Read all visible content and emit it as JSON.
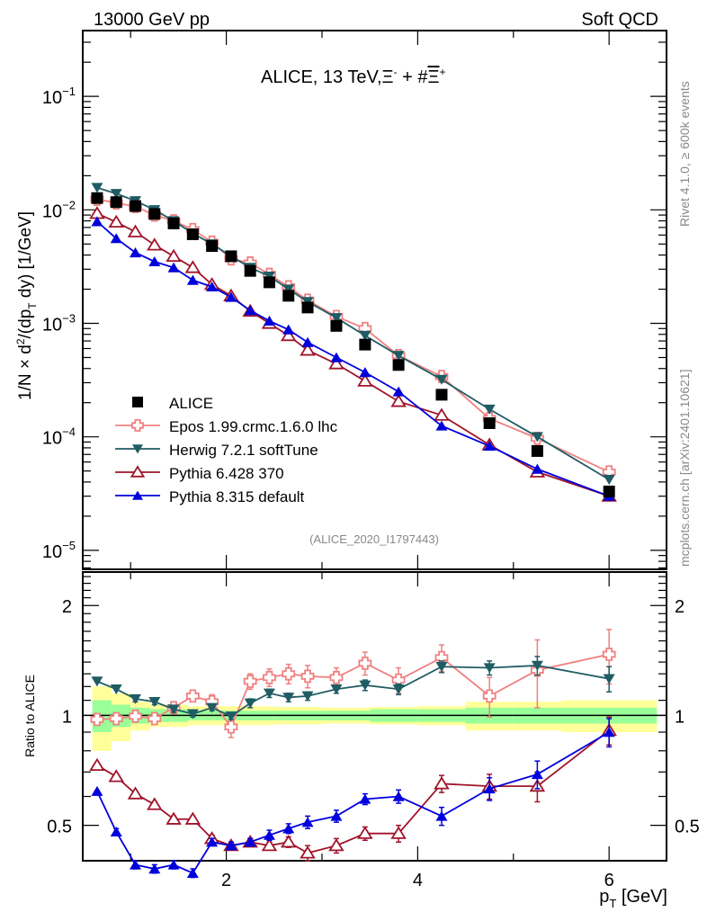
{
  "header": {
    "left": "13000 GeV pp",
    "right": "Soft QCD"
  },
  "side_labels": {
    "rivet": "Rivet 4.1.0, ≥ 600k events",
    "mcplots": "mcplots.cern.ch [arXiv:2401.10621]"
  },
  "chart_data": [
    {
      "type": "line",
      "panel": "main",
      "title": "ALICE, 13 TeV,Ξ⁻ + #Ξ̅⁺",
      "xlabel": "p_T [GeV]",
      "ylabel": "1/N × d²/(dp_T dy) [1/GeV]",
      "yscale": "log",
      "xlim": [
        0.5,
        6.6
      ],
      "ylim": [
        6.8e-06,
        0.38
      ],
      "ytick_labels": [
        "10^-5",
        "10^-4",
        "10^-3",
        "10^-2",
        "10^-1"
      ],
      "ytick_values": [
        1e-05,
        0.0001,
        0.001,
        0.01,
        0.1
      ],
      "analysis_id": "(ALICE_2020_I1797443)",
      "legend_position": "lower-left",
      "x": [
        0.65,
        0.85,
        1.05,
        1.25,
        1.45,
        1.65,
        1.85,
        2.05,
        2.25,
        2.45,
        2.65,
        2.85,
        3.15,
        3.45,
        3.8,
        4.25,
        4.75,
        5.25,
        6.0
      ],
      "series": [
        {
          "name": "ALICE",
          "color": "#000000",
          "marker": "square",
          "line": false,
          "values": [
            0.0127,
            0.0117,
            0.0108,
            0.0092,
            0.0076,
            0.0061,
            0.0048,
            0.0039,
            0.0029,
            0.0023,
            0.00175,
            0.00138,
            0.00095,
            0.00065,
            0.00043,
            0.000235,
            0.000132,
            7.5e-05,
            3.3e-05
          ]
        },
        {
          "name": "Epos 1.99.crmc.1.6.0 lhc",
          "color": "#f08080",
          "marker": "open-cross",
          "line": true,
          "values": [
            0.0124,
            0.0115,
            0.0107,
            0.009,
            0.008,
            0.0067,
            0.0052,
            0.0037,
            0.0034,
            0.0027,
            0.0021,
            0.0016,
            0.00115,
            0.0009,
            0.00052,
            0.00034,
            0.000145,
            9.7e-05,
            4.9e-05
          ]
        },
        {
          "name": "Herwig 7.2.1 softTune",
          "color": "#1f5c63",
          "marker": "down-triangle",
          "line": true,
          "values": [
            0.0157,
            0.0139,
            0.012,
            0.01,
            0.008,
            0.0062,
            0.005,
            0.0039,
            0.0031,
            0.0026,
            0.002,
            0.00155,
            0.00112,
            0.00078,
            0.00052,
            0.00032,
            0.000175,
            0.0001,
            4.2e-05
          ]
        },
        {
          "name": "Pythia 6.428 370",
          "color": "#a0142a",
          "marker": "open-triangle",
          "line": true,
          "values": [
            0.0093,
            0.0078,
            0.0064,
            0.0049,
            0.0039,
            0.0031,
            0.0022,
            0.00175,
            0.00128,
            0.001,
            0.00078,
            0.00058,
            0.00044,
            0.00031,
            0.000205,
            0.000155,
            8.5e-05,
            4.9e-05,
            3e-05
          ]
        },
        {
          "name": "Pythia 8.315 default",
          "color": "#0000dd",
          "marker": "triangle",
          "line": true,
          "values": [
            0.0079,
            0.0056,
            0.0042,
            0.0035,
            0.0031,
            0.0024,
            0.0021,
            0.0017,
            0.0013,
            0.00105,
            0.00088,
            0.00068,
            0.0005,
            0.00037,
            0.00025,
            0.000125,
            8.3e-05,
            5.2e-05,
            3e-05
          ]
        }
      ]
    },
    {
      "type": "line",
      "panel": "ratio",
      "ylabel": "Ratio to ALICE",
      "xlabel": "p_T [GeV]",
      "yscale": "log",
      "xlim": [
        0.5,
        6.6
      ],
      "ylim": [
        0.4,
        2.47
      ],
      "ytick_labels": [
        "0.5",
        "1",
        "2"
      ],
      "ytick_values": [
        0.5,
        1,
        2
      ],
      "xtick_labels": [
        "2",
        "4",
        "6"
      ],
      "xtick_values": [
        2,
        4,
        6
      ],
      "x": [
        0.65,
        0.85,
        1.05,
        1.25,
        1.45,
        1.65,
        1.85,
        2.05,
        2.25,
        2.45,
        2.65,
        2.85,
        3.15,
        3.45,
        3.8,
        4.25,
        4.75,
        5.25,
        6.0
      ],
      "band_edges": [
        0.6,
        0.8,
        1.0,
        1.2,
        1.6,
        2.0,
        2.5,
        3.0,
        3.5,
        4.0,
        4.5,
        5.0,
        5.5,
        6.5
      ],
      "band_inner": [
        0.1,
        0.07,
        0.05,
        0.04,
        0.03,
        0.03,
        0.03,
        0.03,
        0.04,
        0.04,
        0.05,
        0.05,
        0.05
      ],
      "band_outer": [
        0.2,
        0.15,
        0.09,
        0.07,
        0.06,
        0.06,
        0.055,
        0.05,
        0.055,
        0.06,
        0.09,
        0.09,
        0.1
      ],
      "band_colors": {
        "inner": "#99ff99",
        "outer": "#ffff99"
      },
      "series": [
        {
          "name": "Epos 1.99.crmc.1.6.0 lhc",
          "color": "#f08080",
          "marker": "open-cross",
          "values": [
            0.975,
            0.98,
            0.995,
            0.98,
            1.05,
            1.13,
            1.09,
            0.93,
            1.24,
            1.27,
            1.3,
            1.28,
            1.27,
            1.39,
            1.25,
            1.44,
            1.13,
            1.33,
            1.47
          ],
          "errors": [
            0.03,
            0.03,
            0.03,
            0.03,
            0.03,
            0.04,
            0.05,
            0.06,
            0.06,
            0.07,
            0.08,
            0.09,
            0.08,
            0.1,
            0.1,
            0.12,
            0.14,
            0.28,
            0.25
          ]
        },
        {
          "name": "Herwig 7.2.1 softTune",
          "color": "#1f5c63",
          "marker": "down-triangle",
          "values": [
            1.24,
            1.18,
            1.11,
            1.09,
            1.04,
            1.01,
            1.05,
            0.995,
            1.08,
            1.15,
            1.12,
            1.13,
            1.18,
            1.21,
            1.18,
            1.36,
            1.35,
            1.37,
            1.26
          ],
          "errors": [
            0.02,
            0.02,
            0.02,
            0.02,
            0.02,
            0.02,
            0.02,
            0.02,
            0.03,
            0.03,
            0.03,
            0.03,
            0.03,
            0.04,
            0.04,
            0.05,
            0.06,
            0.08,
            0.1
          ]
        },
        {
          "name": "Pythia 6.428 370",
          "color": "#a0142a",
          "marker": "open-triangle",
          "values": [
            0.73,
            0.68,
            0.61,
            0.57,
            0.52,
            0.52,
            0.46,
            0.44,
            0.45,
            0.44,
            0.45,
            0.42,
            0.44,
            0.475,
            0.475,
            0.65,
            0.64,
            0.64,
            0.91
          ],
          "errors": [
            0.01,
            0.01,
            0.01,
            0.01,
            0.01,
            0.01,
            0.01,
            0.01,
            0.01,
            0.01,
            0.015,
            0.02,
            0.02,
            0.02,
            0.025,
            0.035,
            0.05,
            0.06,
            0.08
          ]
        },
        {
          "name": "Pythia 8.315 default",
          "color": "#0000dd",
          "marker": "triangle",
          "values": [
            0.62,
            0.48,
            0.39,
            0.38,
            0.39,
            0.37,
            0.45,
            0.44,
            0.45,
            0.47,
            0.49,
            0.51,
            0.53,
            0.59,
            0.6,
            0.53,
            0.63,
            0.69,
            0.9
          ],
          "errors": [
            0.01,
            0.01,
            0.01,
            0.01,
            0.01,
            0.01,
            0.01,
            0.01,
            0.01,
            0.015,
            0.015,
            0.02,
            0.02,
            0.02,
            0.025,
            0.03,
            0.045,
            0.06,
            0.08
          ]
        }
      ]
    }
  ],
  "legend": [
    {
      "label": "ALICE"
    },
    {
      "label": "Epos 1.99.crmc.1.6.0 lhc"
    },
    {
      "label": "Herwig 7.2.1 softTune"
    },
    {
      "label": "Pythia 6.428 370"
    },
    {
      "label": "Pythia 8.315 default"
    }
  ]
}
